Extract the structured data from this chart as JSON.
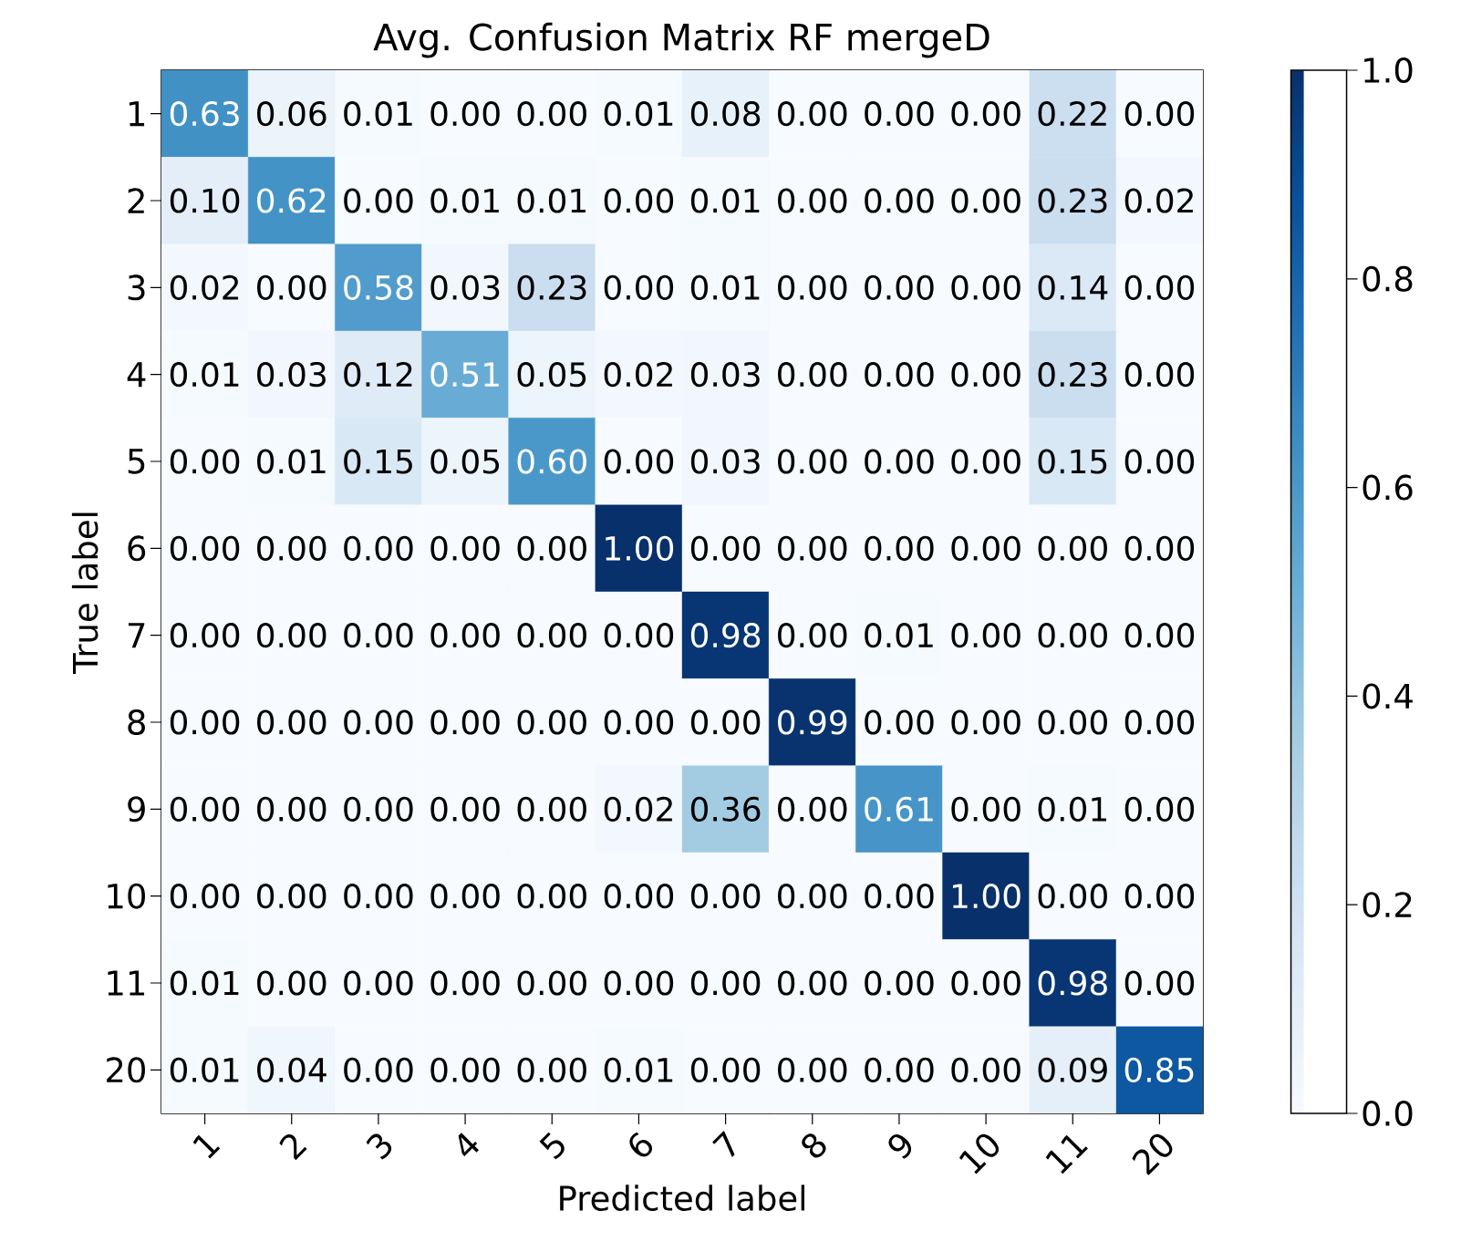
{
  "chart_data": {
    "type": "heatmap",
    "title": "Avg. Confusion Matrix RF mergeD",
    "xlabel": "Predicted label",
    "ylabel": "True label",
    "categories": [
      "1",
      "2",
      "3",
      "4",
      "5",
      "6",
      "7",
      "8",
      "9",
      "10",
      "11",
      "20"
    ],
    "y_categories": [
      "1",
      "2",
      "3",
      "4",
      "5",
      "6",
      "7",
      "8",
      "9",
      "10",
      "11",
      "20"
    ],
    "cells": [
      [
        0.63,
        0.06,
        0.01,
        0.0,
        0.0,
        0.01,
        0.08,
        0.0,
        0.0,
        0.0,
        0.22,
        0.0
      ],
      [
        0.1,
        0.62,
        0.0,
        0.01,
        0.01,
        0.0,
        0.01,
        0.0,
        0.0,
        0.0,
        0.23,
        0.02
      ],
      [
        0.02,
        0.0,
        0.58,
        0.03,
        0.23,
        0.0,
        0.01,
        0.0,
        0.0,
        0.0,
        0.14,
        0.0
      ],
      [
        0.01,
        0.03,
        0.12,
        0.51,
        0.05,
        0.02,
        0.03,
        0.0,
        0.0,
        0.0,
        0.23,
        0.0
      ],
      [
        0.0,
        0.01,
        0.15,
        0.05,
        0.6,
        0.0,
        0.03,
        0.0,
        0.0,
        0.0,
        0.15,
        0.0
      ],
      [
        0.0,
        0.0,
        0.0,
        0.0,
        0.0,
        1.0,
        0.0,
        0.0,
        0.0,
        0.0,
        0.0,
        0.0
      ],
      [
        0.0,
        0.0,
        0.0,
        0.0,
        0.0,
        0.0,
        0.98,
        0.0,
        0.01,
        0.0,
        0.0,
        0.0
      ],
      [
        0.0,
        0.0,
        0.0,
        0.0,
        0.0,
        0.0,
        0.0,
        0.99,
        0.0,
        0.0,
        0.0,
        0.0
      ],
      [
        0.0,
        0.0,
        0.0,
        0.0,
        0.0,
        0.02,
        0.36,
        0.0,
        0.61,
        0.0,
        0.01,
        0.0
      ],
      [
        0.0,
        0.0,
        0.0,
        0.0,
        0.0,
        0.0,
        0.0,
        0.0,
        0.0,
        1.0,
        0.0,
        0.0
      ],
      [
        0.01,
        0.0,
        0.0,
        0.0,
        0.0,
        0.0,
        0.0,
        0.0,
        0.0,
        0.0,
        0.98,
        0.0
      ],
      [
        0.01,
        0.04,
        0.0,
        0.0,
        0.0,
        0.01,
        0.0,
        0.0,
        0.0,
        0.0,
        0.09,
        0.85
      ]
    ],
    "cell_labels": [
      [
        "0.63",
        "0.06",
        "0.01",
        "0.00",
        "0.00",
        "0.01",
        "0.08",
        "0.00",
        "0.00",
        "0.00",
        "0.22",
        "0.00"
      ],
      [
        "0.10",
        "0.62",
        "0.00",
        "0.01",
        "0.01",
        "0.00",
        "0.01",
        "0.00",
        "0.00",
        "0.00",
        "0.23",
        "0.02"
      ],
      [
        "0.02",
        "0.00",
        "0.58",
        "0.03",
        "0.23",
        "0.00",
        "0.01",
        "0.00",
        "0.00",
        "0.00",
        "0.14",
        "0.00"
      ],
      [
        "0.01",
        "0.03",
        "0.12",
        "0.51",
        "0.05",
        "0.02",
        "0.03",
        "0.00",
        "0.00",
        "0.00",
        "0.23",
        "0.00"
      ],
      [
        "0.00",
        "0.01",
        "0.15",
        "0.05",
        "0.60",
        "0.00",
        "0.03",
        "0.00",
        "0.00",
        "0.00",
        "0.15",
        "0.00"
      ],
      [
        "0.00",
        "0.00",
        "0.00",
        "0.00",
        "0.00",
        "1.00",
        "0.00",
        "0.00",
        "0.00",
        "0.00",
        "0.00",
        "0.00"
      ],
      [
        "0.00",
        "0.00",
        "0.00",
        "0.00",
        "0.00",
        "0.00",
        "0.98",
        "0.00",
        "0.01",
        "0.00",
        "0.00",
        "0.00"
      ],
      [
        "0.00",
        "0.00",
        "0.00",
        "0.00",
        "0.00",
        "0.00",
        "0.00",
        "0.99",
        "0.00",
        "0.00",
        "0.00",
        "0.00"
      ],
      [
        "0.00",
        "0.00",
        "0.00",
        "0.00",
        "0.00",
        "0.02",
        "0.36",
        "0.00",
        "0.61",
        "0.00",
        "0.01",
        "0.00"
      ],
      [
        "0.00",
        "0.00",
        "0.00",
        "0.00",
        "0.00",
        "0.00",
        "0.00",
        "0.00",
        "0.00",
        "1.00",
        "0.00",
        "0.00"
      ],
      [
        "0.01",
        "0.00",
        "0.00",
        "0.00",
        "0.00",
        "0.00",
        "0.00",
        "0.00",
        "0.00",
        "0.00",
        "0.98",
        "0.00"
      ],
      [
        "0.01",
        "0.04",
        "0.00",
        "0.00",
        "0.00",
        "0.01",
        "0.00",
        "0.00",
        "0.00",
        "0.00",
        "0.09",
        "0.85"
      ]
    ],
    "clim": [
      0,
      1
    ],
    "cticks": [
      {
        "value": 0,
        "label": "0.0"
      },
      {
        "value": 0.2,
        "label": "0.2"
      },
      {
        "value": 0.4,
        "label": "0.4"
      },
      {
        "value": 0.6,
        "label": "0.6"
      },
      {
        "value": 0.8,
        "label": "0.8"
      },
      {
        "value": 1,
        "label": "1.0"
      }
    ]
  }
}
